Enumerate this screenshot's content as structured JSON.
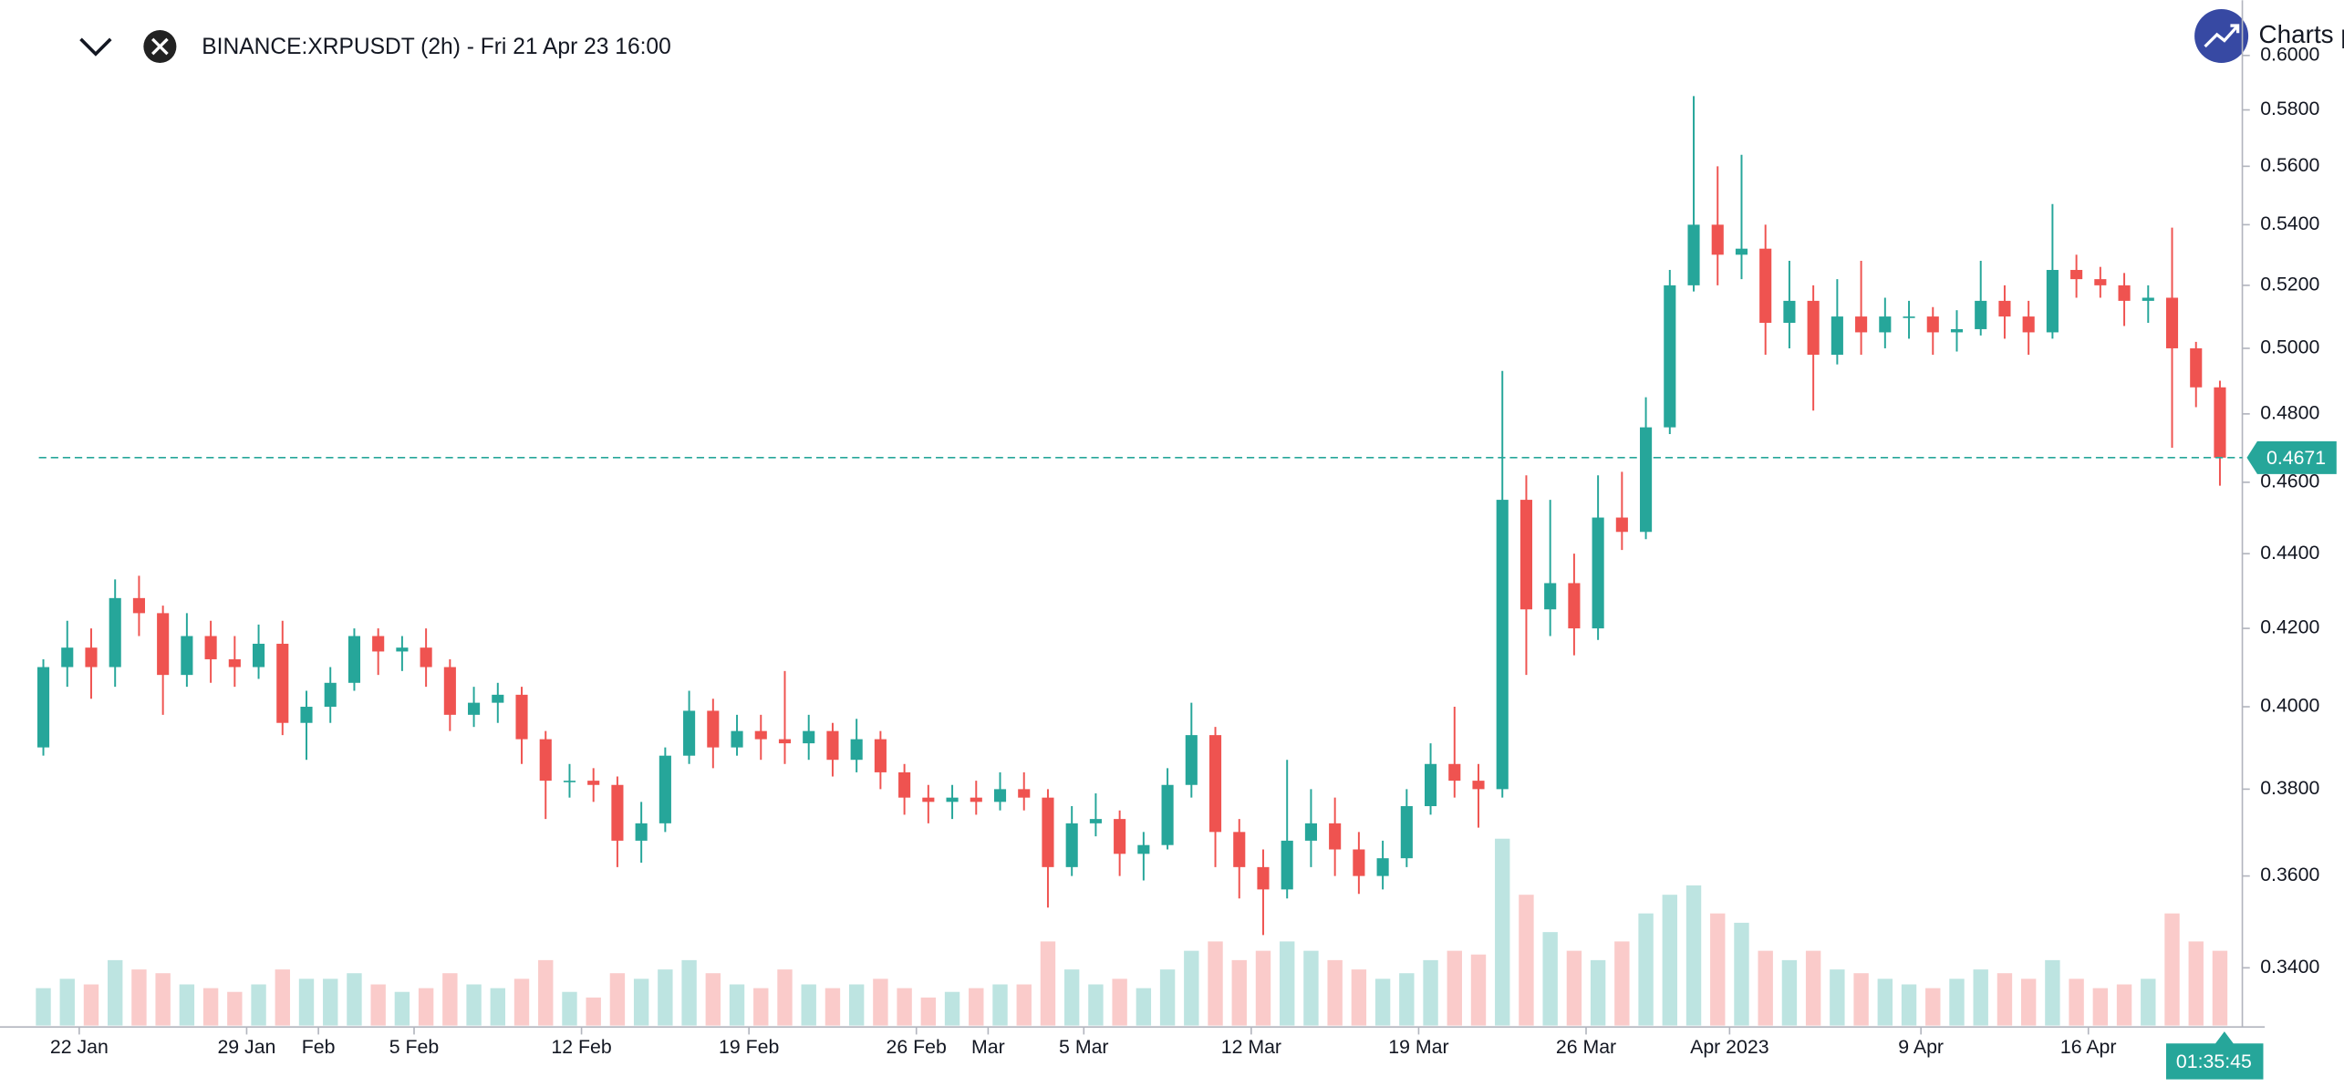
{
  "chart_data": {
    "type": "candlestick",
    "title": "BINANCE:XRPUSDT (2h) - Fri 21 Apr 23 16:00",
    "brand": "Charts p",
    "log_scale": true,
    "up_color": "#26a69a",
    "down_color": "#ef5350",
    "ylim": [
      0.328,
      0.621
    ],
    "yticks": [
      {
        "value": 0.6,
        "label": "0.6000"
      },
      {
        "value": 0.58,
        "label": "0.5800"
      },
      {
        "value": 0.56,
        "label": "0.5600"
      },
      {
        "value": 0.54,
        "label": "0.5400"
      },
      {
        "value": 0.52,
        "label": "0.5200"
      },
      {
        "value": 0.5,
        "label": "0.5000"
      },
      {
        "value": 0.48,
        "label": "0.4800"
      },
      {
        "value": 0.46,
        "label": "0.4600"
      },
      {
        "value": 0.44,
        "label": "0.4400"
      },
      {
        "value": 0.42,
        "label": "0.4200"
      },
      {
        "value": 0.4,
        "label": "0.4000"
      },
      {
        "value": 0.38,
        "label": "0.3800"
      },
      {
        "value": 0.36,
        "label": "0.3600"
      },
      {
        "value": 0.34,
        "label": "0.3400"
      }
    ],
    "xticks": [
      {
        "value": "2023-01-22",
        "label": "22 Jan"
      },
      {
        "value": "2023-01-29",
        "label": "29 Jan"
      },
      {
        "value": "2023-02-01",
        "label": "Feb"
      },
      {
        "value": "2023-02-05",
        "label": "5 Feb"
      },
      {
        "value": "2023-02-12",
        "label": "12 Feb"
      },
      {
        "value": "2023-02-19",
        "label": "19 Feb"
      },
      {
        "value": "2023-02-26",
        "label": "26 Feb"
      },
      {
        "value": "2023-03-01",
        "label": "Mar"
      },
      {
        "value": "2023-03-05",
        "label": "5 Mar"
      },
      {
        "value": "2023-03-12",
        "label": "12 Mar"
      },
      {
        "value": "2023-03-19",
        "label": "19 Mar"
      },
      {
        "value": "2023-03-26",
        "label": "26 Mar"
      },
      {
        "value": "2023-04-01",
        "label": "Apr 2023"
      },
      {
        "value": "2023-04-09",
        "label": "9 Apr"
      },
      {
        "value": "2023-04-16",
        "label": "16 Apr"
      }
    ],
    "last_price": 0.4671,
    "last_price_label": "0.4671",
    "countdown": "01:35:45",
    "x": [
      "2023-01-20",
      "2023-01-21",
      "2023-01-22",
      "2023-01-23",
      "2023-01-24",
      "2023-01-25",
      "2023-01-26",
      "2023-01-27",
      "2023-01-28",
      "2023-01-29",
      "2023-01-30",
      "2023-01-31",
      "2023-02-01",
      "2023-02-02",
      "2023-02-03",
      "2023-02-04",
      "2023-02-05",
      "2023-02-06",
      "2023-02-07",
      "2023-02-08",
      "2023-02-09",
      "2023-02-10",
      "2023-02-11",
      "2023-02-12",
      "2023-02-13",
      "2023-02-14",
      "2023-02-15",
      "2023-02-16",
      "2023-02-17",
      "2023-02-18",
      "2023-02-19",
      "2023-02-20",
      "2023-02-21",
      "2023-02-22",
      "2023-02-23",
      "2023-02-24",
      "2023-02-25",
      "2023-02-26",
      "2023-02-27",
      "2023-02-28",
      "2023-03-01",
      "2023-03-02",
      "2023-03-03",
      "2023-03-04",
      "2023-03-05",
      "2023-03-06",
      "2023-03-07",
      "2023-03-08",
      "2023-03-09",
      "2023-03-10",
      "2023-03-11",
      "2023-03-12",
      "2023-03-13",
      "2023-03-14",
      "2023-03-15",
      "2023-03-16",
      "2023-03-17",
      "2023-03-18",
      "2023-03-19",
      "2023-03-20",
      "2023-03-21",
      "2023-03-22",
      "2023-03-23",
      "2023-03-24",
      "2023-03-25",
      "2023-03-26",
      "2023-03-27",
      "2023-03-28",
      "2023-03-29",
      "2023-03-30",
      "2023-03-31",
      "2023-04-01",
      "2023-04-02",
      "2023-04-03",
      "2023-04-04",
      "2023-04-05",
      "2023-04-06",
      "2023-04-07",
      "2023-04-08",
      "2023-04-09",
      "2023-04-10",
      "2023-04-11",
      "2023-04-12",
      "2023-04-13",
      "2023-04-14",
      "2023-04-15",
      "2023-04-16",
      "2023-04-17",
      "2023-04-18",
      "2023-04-19",
      "2023-04-20",
      "2023-04-21"
    ],
    "ohlc": [
      [
        0.39,
        0.412,
        0.388,
        0.41
      ],
      [
        0.41,
        0.422,
        0.405,
        0.415
      ],
      [
        0.415,
        0.42,
        0.402,
        0.41
      ],
      [
        0.41,
        0.433,
        0.405,
        0.428
      ],
      [
        0.428,
        0.434,
        0.418,
        0.424
      ],
      [
        0.424,
        0.426,
        0.398,
        0.408
      ],
      [
        0.408,
        0.424,
        0.405,
        0.418
      ],
      [
        0.418,
        0.422,
        0.406,
        0.412
      ],
      [
        0.412,
        0.418,
        0.405,
        0.41
      ],
      [
        0.41,
        0.421,
        0.407,
        0.416
      ],
      [
        0.416,
        0.422,
        0.393,
        0.396
      ],
      [
        0.396,
        0.404,
        0.387,
        0.4
      ],
      [
        0.4,
        0.41,
        0.396,
        0.406
      ],
      [
        0.406,
        0.42,
        0.404,
        0.418
      ],
      [
        0.418,
        0.42,
        0.408,
        0.414
      ],
      [
        0.414,
        0.418,
        0.409,
        0.415
      ],
      [
        0.415,
        0.42,
        0.405,
        0.41
      ],
      [
        0.41,
        0.412,
        0.394,
        0.398
      ],
      [
        0.398,
        0.405,
        0.395,
        0.401
      ],
      [
        0.401,
        0.406,
        0.396,
        0.403
      ],
      [
        0.403,
        0.405,
        0.386,
        0.392
      ],
      [
        0.392,
        0.394,
        0.373,
        0.382
      ],
      [
        0.382,
        0.386,
        0.378,
        0.382
      ],
      [
        0.382,
        0.385,
        0.377,
        0.381
      ],
      [
        0.381,
        0.383,
        0.362,
        0.368
      ],
      [
        0.368,
        0.377,
        0.363,
        0.372
      ],
      [
        0.372,
        0.39,
        0.37,
        0.388
      ],
      [
        0.388,
        0.404,
        0.386,
        0.399
      ],
      [
        0.399,
        0.402,
        0.385,
        0.39
      ],
      [
        0.39,
        0.398,
        0.388,
        0.394
      ],
      [
        0.394,
        0.398,
        0.387,
        0.392
      ],
      [
        0.392,
        0.409,
        0.386,
        0.391
      ],
      [
        0.391,
        0.398,
        0.387,
        0.394
      ],
      [
        0.394,
        0.396,
        0.383,
        0.387
      ],
      [
        0.387,
        0.397,
        0.384,
        0.392
      ],
      [
        0.392,
        0.394,
        0.38,
        0.384
      ],
      [
        0.384,
        0.386,
        0.374,
        0.378
      ],
      [
        0.378,
        0.381,
        0.372,
        0.377
      ],
      [
        0.377,
        0.381,
        0.373,
        0.378
      ],
      [
        0.378,
        0.382,
        0.374,
        0.377
      ],
      [
        0.377,
        0.384,
        0.375,
        0.38
      ],
      [
        0.38,
        0.384,
        0.375,
        0.378
      ],
      [
        0.378,
        0.38,
        0.353,
        0.362
      ],
      [
        0.362,
        0.376,
        0.36,
        0.372
      ],
      [
        0.372,
        0.379,
        0.369,
        0.373
      ],
      [
        0.373,
        0.375,
        0.36,
        0.365
      ],
      [
        0.365,
        0.37,
        0.359,
        0.367
      ],
      [
        0.367,
        0.385,
        0.366,
        0.381
      ],
      [
        0.381,
        0.401,
        0.378,
        0.393
      ],
      [
        0.393,
        0.395,
        0.362,
        0.37
      ],
      [
        0.37,
        0.373,
        0.355,
        0.362
      ],
      [
        0.362,
        0.366,
        0.347,
        0.357
      ],
      [
        0.357,
        0.387,
        0.355,
        0.368
      ],
      [
        0.368,
        0.38,
        0.362,
        0.372
      ],
      [
        0.372,
        0.378,
        0.36,
        0.366
      ],
      [
        0.366,
        0.37,
        0.356,
        0.36
      ],
      [
        0.36,
        0.368,
        0.357,
        0.364
      ],
      [
        0.364,
        0.38,
        0.362,
        0.376
      ],
      [
        0.376,
        0.391,
        0.374,
        0.386
      ],
      [
        0.386,
        0.4,
        0.378,
        0.382
      ],
      [
        0.382,
        0.386,
        0.371,
        0.38
      ],
      [
        0.38,
        0.493,
        0.378,
        0.455
      ],
      [
        0.455,
        0.462,
        0.408,
        0.425
      ],
      [
        0.425,
        0.455,
        0.418,
        0.432
      ],
      [
        0.432,
        0.44,
        0.413,
        0.42
      ],
      [
        0.42,
        0.462,
        0.417,
        0.45
      ],
      [
        0.45,
        0.463,
        0.441,
        0.446
      ],
      [
        0.446,
        0.485,
        0.444,
        0.476
      ],
      [
        0.476,
        0.525,
        0.474,
        0.52
      ],
      [
        0.52,
        0.585,
        0.518,
        0.54
      ],
      [
        0.54,
        0.56,
        0.52,
        0.53
      ],
      [
        0.53,
        0.564,
        0.522,
        0.532
      ],
      [
        0.532,
        0.54,
        0.498,
        0.508
      ],
      [
        0.508,
        0.528,
        0.5,
        0.515
      ],
      [
        0.515,
        0.52,
        0.481,
        0.498
      ],
      [
        0.498,
        0.522,
        0.495,
        0.51
      ],
      [
        0.51,
        0.528,
        0.498,
        0.505
      ],
      [
        0.505,
        0.516,
        0.5,
        0.51
      ],
      [
        0.51,
        0.515,
        0.503,
        0.51
      ],
      [
        0.51,
        0.513,
        0.498,
        0.505
      ],
      [
        0.505,
        0.512,
        0.499,
        0.506
      ],
      [
        0.506,
        0.528,
        0.504,
        0.515
      ],
      [
        0.515,
        0.52,
        0.503,
        0.51
      ],
      [
        0.51,
        0.515,
        0.498,
        0.505
      ],
      [
        0.505,
        0.547,
        0.503,
        0.525
      ],
      [
        0.525,
        0.53,
        0.516,
        0.522
      ],
      [
        0.522,
        0.526,
        0.516,
        0.52
      ],
      [
        0.52,
        0.524,
        0.507,
        0.515
      ],
      [
        0.515,
        0.52,
        0.508,
        0.516
      ],
      [
        0.516,
        0.539,
        0.47,
        0.5
      ],
      [
        0.5,
        0.502,
        0.482,
        0.488
      ],
      [
        0.488,
        0.49,
        0.459,
        0.4671
      ]
    ],
    "volume": [
      20,
      25,
      22,
      35,
      30,
      28,
      22,
      20,
      18,
      22,
      30,
      25,
      25,
      28,
      22,
      18,
      20,
      28,
      22,
      20,
      25,
      35,
      18,
      15,
      28,
      25,
      30,
      35,
      28,
      22,
      20,
      30,
      22,
      20,
      22,
      25,
      20,
      15,
      18,
      20,
      22,
      22,
      45,
      30,
      22,
      25,
      20,
      30,
      40,
      45,
      35,
      40,
      45,
      40,
      35,
      30,
      25,
      28,
      35,
      40,
      38,
      100,
      70,
      50,
      40,
      35,
      45,
      60,
      70,
      75,
      60,
      55,
      40,
      35,
      40,
      30,
      28,
      25,
      22,
      20,
      25,
      30,
      28,
      25,
      35,
      25,
      20,
      22,
      25,
      60,
      45,
      40
    ]
  }
}
